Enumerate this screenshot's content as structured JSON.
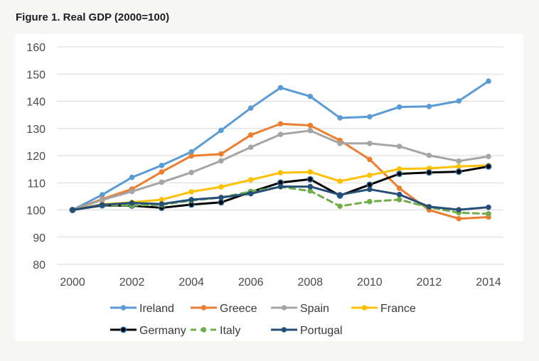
{
  "title": "Figure 1. Real GDP (2000=100)",
  "chart_data": {
    "type": "line",
    "title": "Figure 1. Real GDP (2000=100)",
    "xlabel": "",
    "ylabel": "",
    "x": [
      2000,
      2001,
      2002,
      2003,
      2004,
      2005,
      2006,
      2007,
      2008,
      2009,
      2010,
      2011,
      2012,
      2013,
      2014
    ],
    "xticks": [
      "2000",
      "2002",
      "2004",
      "2006",
      "2008",
      "2010",
      "2012",
      "2014"
    ],
    "yticks": [
      "80",
      "90",
      "100",
      "110",
      "120",
      "130",
      "140",
      "150",
      "160"
    ],
    "ylim": [
      80,
      160
    ],
    "grid": true,
    "legend_position": "bottom",
    "series": [
      {
        "name": "Ireland",
        "color": "#5b9bd5",
        "dashed": false,
        "marker_outline": false,
        "values": [
          100,
          105.6,
          112,
          116.4,
          121.4,
          129.3,
          137.5,
          145,
          141.8,
          133.9,
          134.3,
          137.9,
          138.1,
          140.1,
          147.4
        ]
      },
      {
        "name": "Greece",
        "color": "#ed7d31",
        "dashed": false,
        "marker_outline": false,
        "values": [
          100,
          104,
          107.7,
          114,
          119.9,
          120.6,
          127.6,
          131.7,
          131.1,
          125.6,
          118.6,
          108,
          100,
          96.8,
          97.4
        ]
      },
      {
        "name": "Spain",
        "color": "#a5a5a5",
        "dashed": false,
        "marker_outline": false,
        "values": [
          100,
          103.7,
          106.8,
          110.2,
          113.8,
          118.1,
          123.1,
          127.8,
          129.2,
          124.5,
          124.5,
          123.4,
          120.1,
          118,
          119.7
        ]
      },
      {
        "name": "France",
        "color": "#ffc000",
        "dashed": false,
        "marker_outline": false,
        "values": [
          100,
          102.1,
          102.8,
          103.8,
          106.7,
          108.5,
          111.1,
          113.7,
          114,
          110.6,
          112.8,
          115.1,
          115.3,
          116,
          116.4
        ]
      },
      {
        "name": "Germany",
        "color": "#000000",
        "dashed": false,
        "marker_outline": true,
        "values": [
          100,
          101.7,
          101.6,
          100.8,
          102,
          102.8,
          106.6,
          110.1,
          111.3,
          105.3,
          109.3,
          113.3,
          113.8,
          114.1,
          116
        ]
      },
      {
        "name": "Italy",
        "color": "#70ad47",
        "dashed": true,
        "marker_outline": false,
        "values": [
          100,
          101.9,
          101.7,
          101.9,
          103.5,
          104.6,
          106.8,
          108.5,
          107,
          101.4,
          103.1,
          103.8,
          101,
          99,
          98.6
        ]
      },
      {
        "name": "Portugal",
        "color": "#264f78",
        "dashed": false,
        "marker_outline": false,
        "values": [
          100,
          101.9,
          102.6,
          102.2,
          103.8,
          104.6,
          106,
          108.6,
          108.6,
          105.6,
          107.6,
          105.7,
          101.2,
          100.1,
          101
        ]
      }
    ]
  }
}
